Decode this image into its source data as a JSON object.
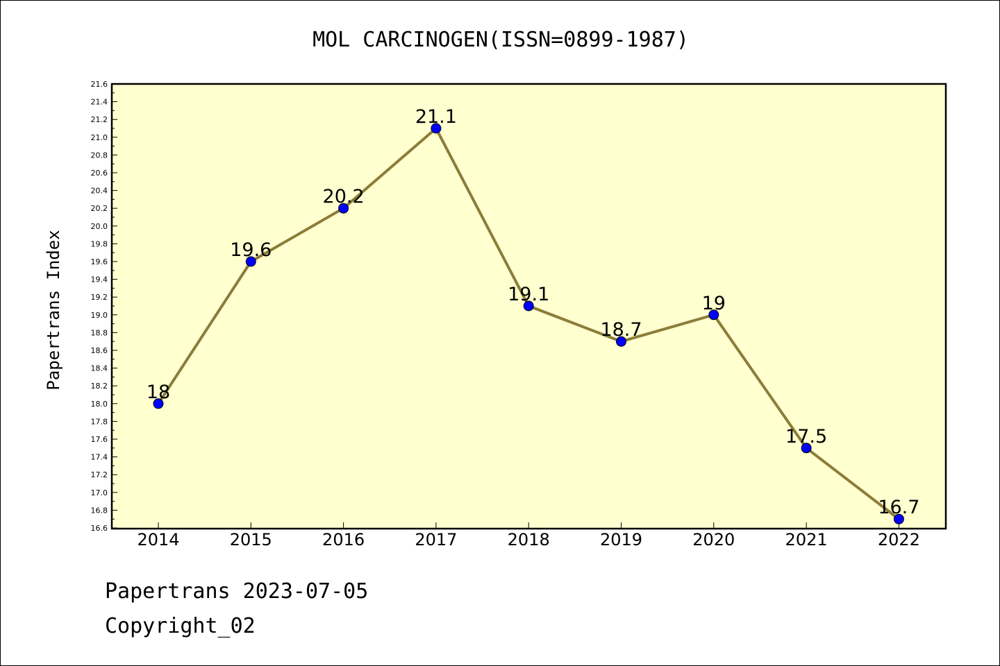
{
  "chart_data": {
    "type": "line",
    "title": "MOL CARCINOGEN(ISSN=0899-1987)",
    "xlabel": "",
    "ylabel": "Papertrans Index",
    "categories": [
      "2014",
      "2015",
      "2016",
      "2017",
      "2018",
      "2019",
      "2020",
      "2021",
      "2022"
    ],
    "series": [
      {
        "values": [
          18,
          19.6,
          20.2,
          21.1,
          19.1,
          18.7,
          19,
          17.5,
          16.7
        ],
        "labels": [
          "18",
          "19.6",
          "20.2",
          "21.1",
          "19.1",
          "18.7",
          "19",
          "17.5",
          "16.7"
        ]
      }
    ],
    "ylim": [
      16.6,
      21.6
    ],
    "yticks": [
      "16.6",
      "16.8",
      "17.0",
      "17.2",
      "17.4",
      "17.6",
      "17.8",
      "18.0",
      "18.2",
      "18.4",
      "18.6",
      "18.8",
      "19.0",
      "19.2",
      "19.4",
      "19.6",
      "19.8",
      "20.0",
      "20.2",
      "20.4",
      "20.6",
      "20.8",
      "21.0",
      "21.2",
      "21.4",
      "21.6"
    ],
    "grid": false,
    "colors": {
      "plot_background": "#ffffd0",
      "line": "#8b7d38",
      "marker": "#0000ff"
    }
  },
  "footer": {
    "line1": "Papertrans 2023-07-05",
    "line2": "Copyright_02"
  }
}
